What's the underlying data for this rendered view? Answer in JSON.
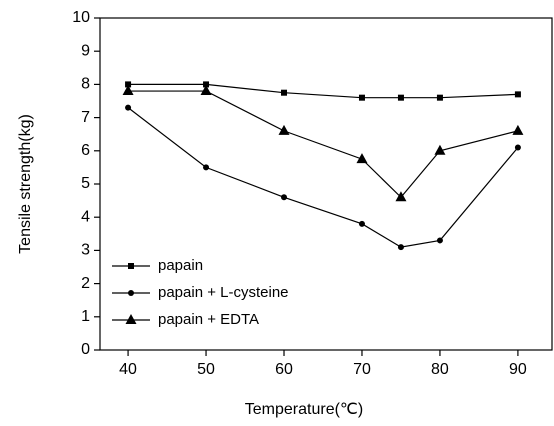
{
  "chart_data": {
    "type": "line",
    "xlabel": "Temperature(℃)",
    "ylabel": "Tensile strength(kg)",
    "x": [
      40,
      50,
      60,
      70,
      75,
      80,
      90
    ],
    "series": [
      {
        "name": "papain",
        "color": "#000000",
        "marker": "square",
        "values": [
          8.0,
          8.0,
          7.75,
          7.6,
          7.6,
          7.6,
          7.7
        ]
      },
      {
        "name": "papain + L-cysteine",
        "color": "#000000",
        "marker": "circle",
        "values": [
          7.3,
          5.5,
          4.6,
          3.8,
          3.1,
          3.3,
          6.1
        ]
      },
      {
        "name": "papain + EDTA",
        "color": "#000000",
        "marker": "triangle",
        "values": [
          7.8,
          7.8,
          6.6,
          5.75,
          4.6,
          6.0,
          6.6
        ]
      }
    ],
    "xlim": [
      36.4,
      94.5
    ],
    "ylim": [
      0,
      10
    ],
    "xticks": [
      40,
      50,
      60,
      70,
      80,
      90
    ],
    "yticks": [
      0,
      1,
      2,
      3,
      4,
      5,
      6,
      7,
      8,
      9,
      10
    ],
    "legend": "lower left"
  }
}
